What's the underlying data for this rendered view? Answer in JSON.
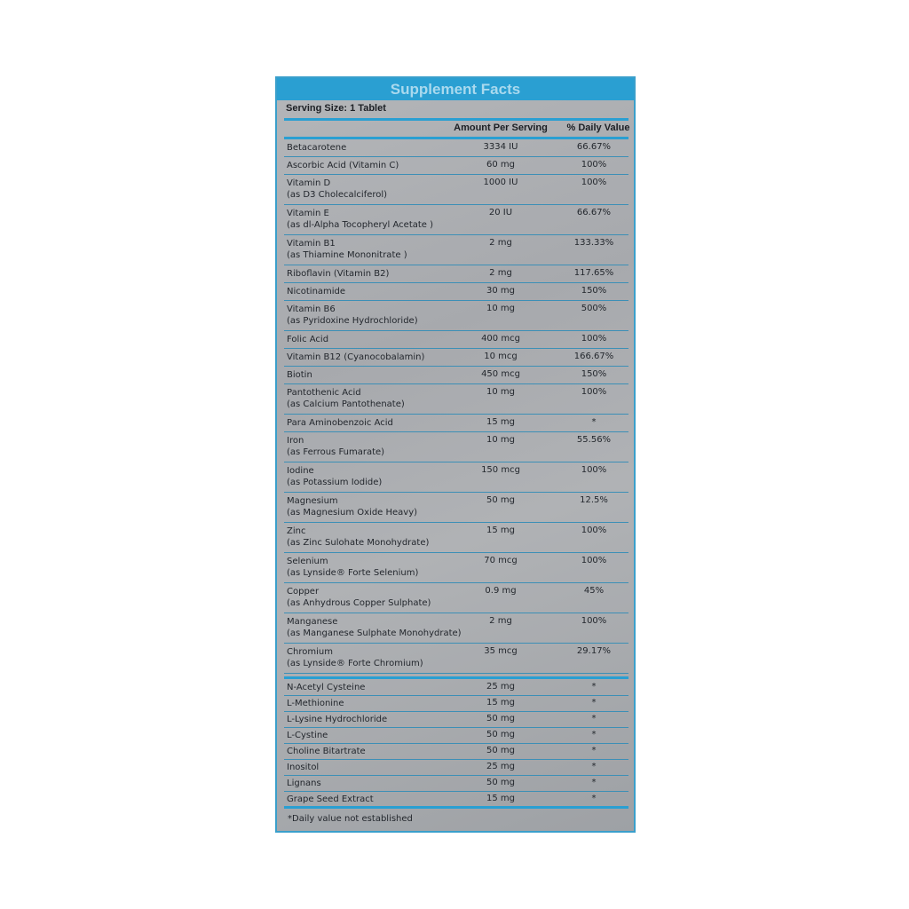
{
  "title": "Supplement Facts",
  "serving_size": "Serving Size: 1 Tablet",
  "columns": {
    "amount": "Amount Per Serving",
    "daily_value": "% Daily Value"
  },
  "colors": {
    "accent": "#2a9fd2",
    "panel": "#acafb2"
  },
  "vitamins_minerals": [
    {
      "name": "Betacarotene",
      "amount": "3334 IU",
      "dv": "66.67%"
    },
    {
      "name": "Ascorbic Acid  (Vitamin C)",
      "amount": "60 mg",
      "dv": "100%"
    },
    {
      "name": "Vitamin D",
      "sub": "(as D3 Cholecalciferol)",
      "amount": "1000 IU",
      "dv": "100%"
    },
    {
      "name": "Vitamin E",
      "sub": "(as dl-Alpha Tocopheryl Acetate )",
      "amount": "20 IU",
      "dv": "66.67%"
    },
    {
      "name": "Vitamin B1",
      "sub": "(as Thiamine Mononitrate )",
      "amount": "2 mg",
      "dv": "133.33%"
    },
    {
      "name": "Riboflavin  (Vitamin B2)",
      "amount": "2 mg",
      "dv": "117.65%"
    },
    {
      "name": "Nicotinamide",
      "amount": "30 mg",
      "dv": "150%"
    },
    {
      "name": "Vitamin  B6",
      "sub": "(as Pyridoxine Hydrochloride)",
      "amount": "10 mg",
      "dv": "500%"
    },
    {
      "name": "Folic Acid",
      "amount": "400 mcg",
      "dv": "100%"
    },
    {
      "name": "Vitamin B12 (Cyanocobalamin)",
      "amount": "10 mcg",
      "dv": "166.67%"
    },
    {
      "name": "Biotin",
      "amount": "450 mcg",
      "dv": "150%"
    },
    {
      "name": "Pantothenic Acid",
      "sub": "(as Calcium Pantothenate)",
      "amount": "10 mg",
      "dv": "100%"
    },
    {
      "name": "Para Aminobenzoic Acid",
      "amount": "15 mg",
      "dv": "*"
    },
    {
      "name": "Iron",
      "sub": "(as Ferrous Fumarate)",
      "amount": "10 mg",
      "dv": "55.56%"
    },
    {
      "name": "Iodine",
      "sub": "(as Potassium Iodide)",
      "amount": "150 mcg",
      "dv": "100%"
    },
    {
      "name": "Magnesium",
      "sub": "(as Magnesium Oxide Heavy)",
      "amount": "50 mg",
      "dv": "12.5%"
    },
    {
      "name": "Zinc",
      "sub": "(as Zinc Sulohate Monohydrate)",
      "amount": "15 mg",
      "dv": "100%"
    },
    {
      "name": "Selenium",
      "sub": "(as Lynside® Forte Selenium)",
      "amount": "70 mcg",
      "dv": "100%"
    },
    {
      "name": "Copper",
      "sub": "(as Anhydrous Copper Sulphate)",
      "amount": "0.9 mg",
      "dv": "45%"
    },
    {
      "name": "Manganese",
      "sub": "(as Manganese Sulphate Monohydrate)",
      "amount": "2 mg",
      "dv": "100%"
    },
    {
      "name": "Chromium",
      "sub": "(as Lynside® Forte Chromium)",
      "amount": "35 mcg",
      "dv": "29.17%"
    }
  ],
  "other_ingredients": [
    {
      "name": "N-Acetyl Cysteine",
      "amount": "25 mg",
      "dv": "*"
    },
    {
      "name": "L-Methionine",
      "amount": "15 mg",
      "dv": "*"
    },
    {
      "name": "L-Lysine Hydrochloride",
      "amount": "50 mg",
      "dv": "*"
    },
    {
      "name": "L-Cystine",
      "amount": "50 mg",
      "dv": "*"
    },
    {
      "name": "Choline Bitartrate",
      "amount": "50 mg",
      "dv": "*"
    },
    {
      "name": "Inositol",
      "amount": "25 mg",
      "dv": "*"
    },
    {
      "name": "Lignans",
      "amount": "50 mg",
      "dv": "*"
    },
    {
      "name": "Grape Seed Extract",
      "amount": "15 mg",
      "dv": "*"
    }
  ],
  "footnote": "*Daily value not established"
}
